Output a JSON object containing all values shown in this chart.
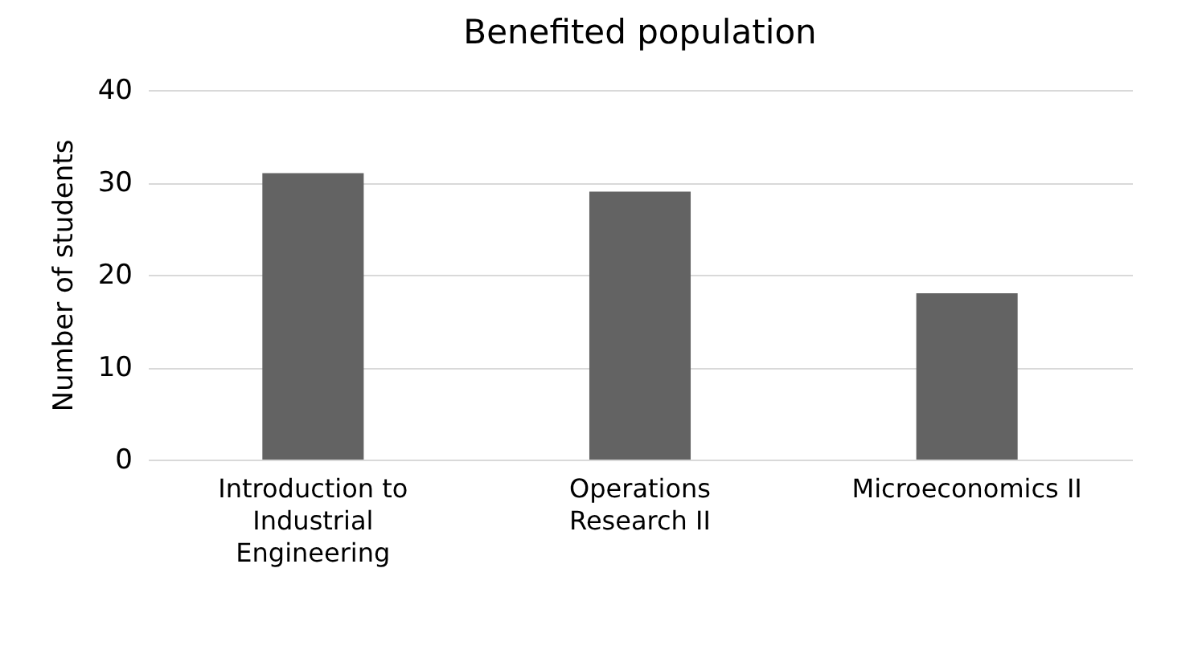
{
  "chart_data": {
    "type": "bar",
    "title": "Benefited population",
    "ylabel": "Number of students",
    "categories": [
      "Introduction to Industrial Engineering",
      "Operations Research II",
      "Microeconomics II"
    ],
    "values": [
      31,
      29,
      18
    ],
    "color": "#636363",
    "ylim": [
      0,
      40
    ],
    "yticks": [
      0,
      10,
      20,
      30,
      40
    ],
    "grid": "y"
  }
}
